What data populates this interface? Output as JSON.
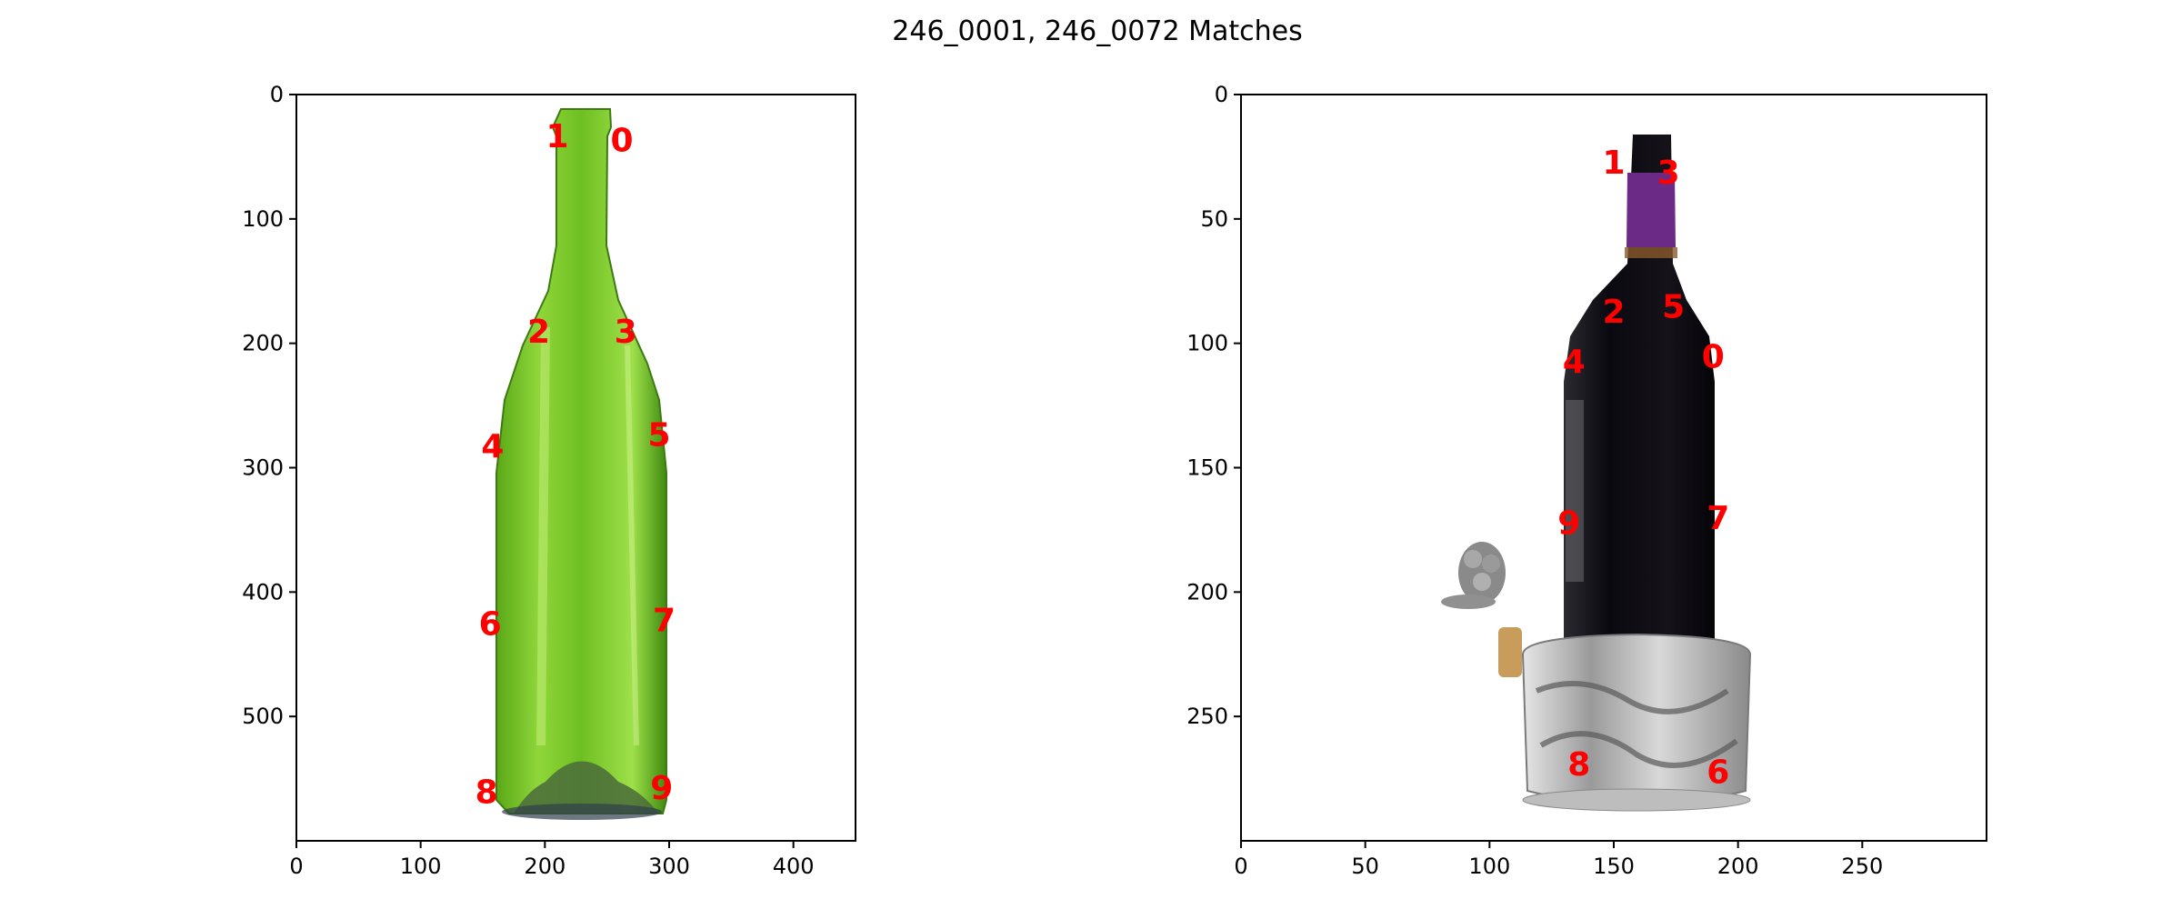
{
  "figure_title": "246_0001, 246_0072 Matches",
  "colors": {
    "keypoint": "#ff0000",
    "axes": "#000000",
    "background": "#ffffff",
    "green_glass": "#7cc52a",
    "dark_glass": "#0d0a10",
    "capsule": "#6b2a86",
    "silver": "#c8c8c8"
  },
  "chart_data": [
    {
      "type": "scatter",
      "name": "246_0001",
      "image_content": "empty green glass wine bottle",
      "xlim": [
        0,
        450
      ],
      "ylim": [
        600,
        0
      ],
      "xticks": [
        0,
        100,
        200,
        300,
        400
      ],
      "yticks": [
        0,
        100,
        200,
        300,
        400,
        500
      ],
      "points": [
        {
          "label": "0",
          "x": 262,
          "y": 36
        },
        {
          "label": "1",
          "x": 210,
          "y": 33
        },
        {
          "label": "2",
          "x": 195,
          "y": 190
        },
        {
          "label": "3",
          "x": 265,
          "y": 190
        },
        {
          "label": "4",
          "x": 158,
          "y": 282
        },
        {
          "label": "5",
          "x": 292,
          "y": 273
        },
        {
          "label": "6",
          "x": 156,
          "y": 425
        },
        {
          "label": "7",
          "x": 296,
          "y": 422
        },
        {
          "label": "8",
          "x": 153,
          "y": 560
        },
        {
          "label": "9",
          "x": 294,
          "y": 557
        }
      ]
    },
    {
      "type": "scatter",
      "name": "246_0072",
      "image_content": "dark wine bottle on ornate silver coaster with cork stopper",
      "xlim": [
        0,
        300
      ],
      "ylim": [
        300,
        0
      ],
      "xticks": [
        0,
        50,
        100,
        150,
        200,
        250
      ],
      "yticks": [
        0,
        50,
        100,
        150,
        200,
        250
      ],
      "points": [
        {
          "label": "0",
          "x": 190,
          "y": 105
        },
        {
          "label": "1",
          "x": 150,
          "y": 27
        },
        {
          "label": "2",
          "x": 150,
          "y": 87
        },
        {
          "label": "3",
          "x": 172,
          "y": 31
        },
        {
          "label": "4",
          "x": 134,
          "y": 107
        },
        {
          "label": "5",
          "x": 174,
          "y": 85
        },
        {
          "label": "6",
          "x": 192,
          "y": 272
        },
        {
          "label": "7",
          "x": 192,
          "y": 170
        },
        {
          "label": "8",
          "x": 136,
          "y": 269
        },
        {
          "label": "9",
          "x": 132,
          "y": 172
        }
      ]
    }
  ]
}
